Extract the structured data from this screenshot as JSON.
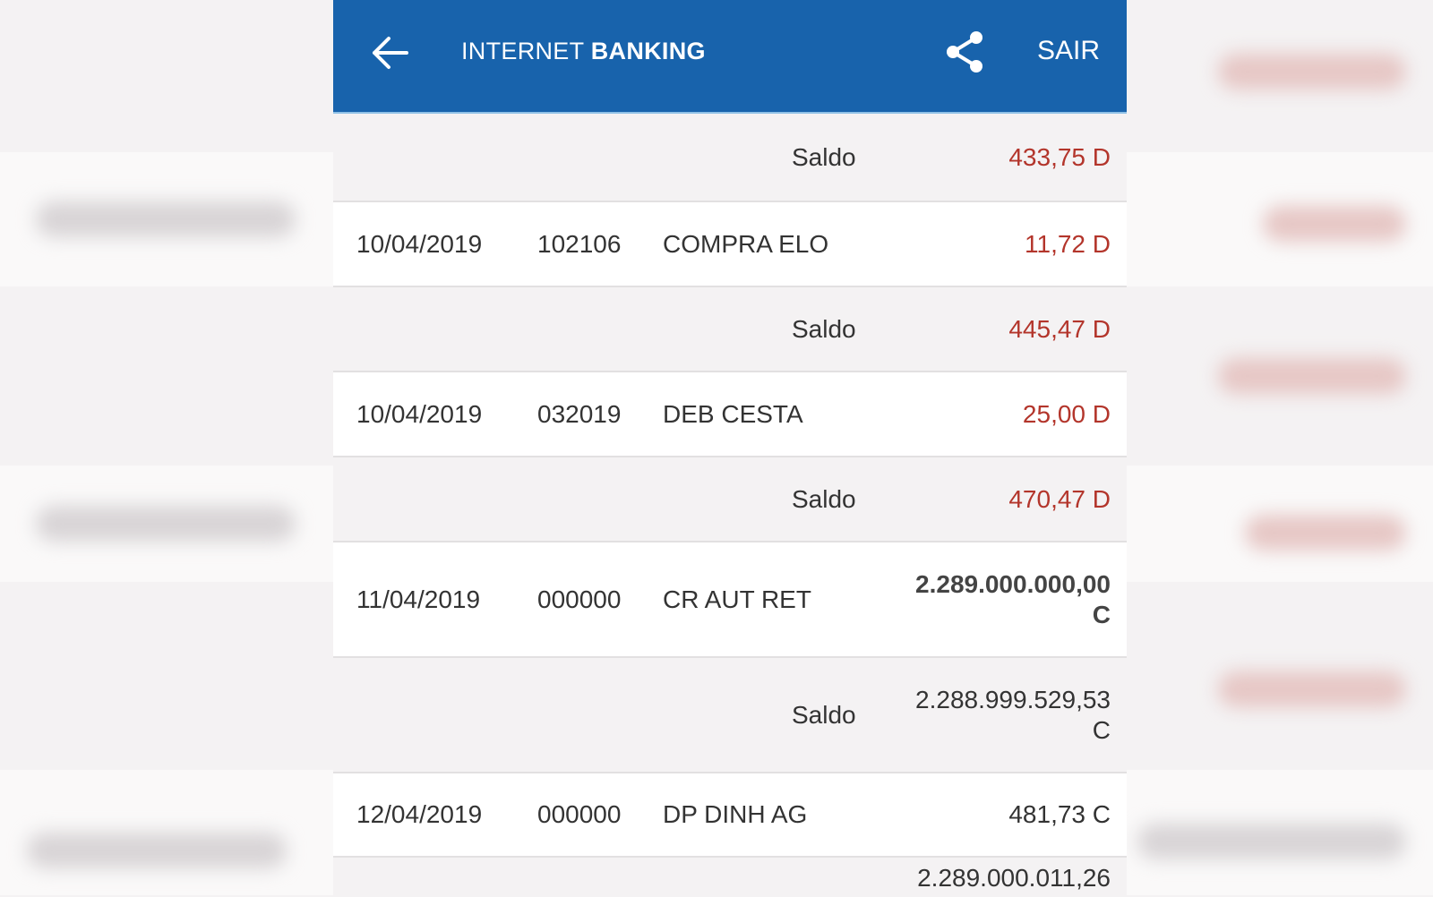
{
  "header": {
    "title_light": "INTERNET",
    "title_bold": "BANKING",
    "logout_label": "SAIR",
    "back_icon": "arrow-left-icon",
    "share_icon": "share-icon",
    "background_color": "#1863ac"
  },
  "colors": {
    "debit": "#b3352b",
    "text": "#333333"
  },
  "rows": [
    {
      "type": "saldo",
      "label": "Saldo",
      "value": "433,75 D",
      "debit": true
    },
    {
      "type": "tx",
      "date": "10/04/2019",
      "doc": "102106",
      "desc": "COMPRA ELO",
      "value": "11,72 D",
      "debit": true
    },
    {
      "type": "saldo",
      "label": "Saldo",
      "value": "445,47 D",
      "debit": true
    },
    {
      "type": "tx",
      "date": "10/04/2019",
      "doc": "032019",
      "desc": "DEB CESTA",
      "value": "25,00 D",
      "debit": true
    },
    {
      "type": "saldo",
      "label": "Saldo",
      "value": "470,47 D",
      "debit": true
    },
    {
      "type": "tx",
      "date": "11/04/2019",
      "doc": "000000",
      "desc": "CR AUT RET",
      "value": "2.289.000.000,00",
      "suffix": "C",
      "debit": false
    },
    {
      "type": "saldo",
      "label": "Saldo",
      "value": "2.288.999.529,53",
      "suffix": "C",
      "debit": false
    },
    {
      "type": "tx",
      "date": "12/04/2019",
      "doc": "000000",
      "desc": "DP DINH AG",
      "value": "481,73 C",
      "debit": false
    },
    {
      "type": "saldo",
      "label": "",
      "value": "2.289.000.011,26",
      "debit": false
    }
  ]
}
